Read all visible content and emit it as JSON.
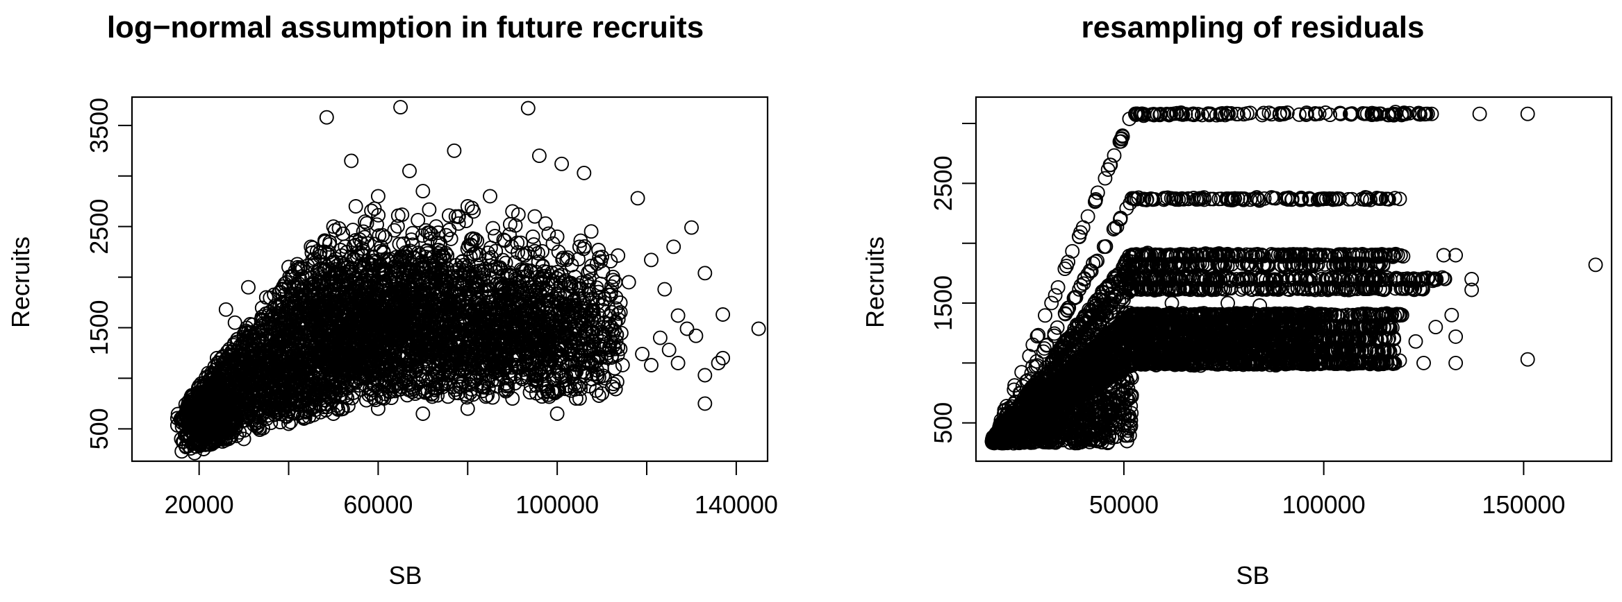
{
  "chart_data": [
    {
      "type": "scatter",
      "title": "log−normal assumption in future recruits",
      "xlabel": "SB",
      "ylabel": "Recruits",
      "xlim": [
        5000,
        147000
      ],
      "ylim": [
        180,
        3780
      ],
      "x_ticks": [
        20000,
        40000,
        60000,
        80000,
        100000,
        120000,
        140000
      ],
      "x_tick_labels": [
        "20000",
        "",
        "60000",
        "",
        "100000",
        "",
        "140000"
      ],
      "y_ticks": [
        500,
        1000,
        1500,
        2000,
        2500,
        3000,
        3500
      ],
      "y_tick_labels": [
        "500",
        "",
        "1500",
        "",
        "2500",
        "",
        "3500"
      ],
      "marker": "open-circle",
      "grid": false,
      "legend": "none",
      "points": [
        [
          48500,
          3580
        ],
        [
          65000,
          3680
        ],
        [
          93500,
          3670
        ],
        [
          54000,
          3150
        ],
        [
          77000,
          3250
        ],
        [
          67000,
          3050
        ],
        [
          96000,
          3200
        ],
        [
          101000,
          3120
        ],
        [
          106000,
          3030
        ],
        [
          118000,
          2780
        ],
        [
          130000,
          2490
        ],
        [
          126000,
          2300
        ],
        [
          121000,
          2170
        ],
        [
          133000,
          2040
        ],
        [
          124000,
          1880
        ],
        [
          127000,
          1620
        ],
        [
          129000,
          1490
        ],
        [
          131000,
          1420
        ],
        [
          123000,
          1400
        ],
        [
          125000,
          1280
        ],
        [
          127000,
          1150
        ],
        [
          133000,
          1030
        ],
        [
          136000,
          1150
        ],
        [
          137000,
          1200
        ],
        [
          133000,
          750
        ],
        [
          137000,
          1630
        ],
        [
          145000,
          1490
        ],
        [
          121000,
          1130
        ],
        [
          119000,
          1240
        ],
        [
          116000,
          1950
        ],
        [
          16000,
          400
        ],
        [
          17000,
          330
        ],
        [
          18000,
          480
        ],
        [
          19000,
          260
        ],
        [
          21000,
          300
        ],
        [
          22000,
          1050
        ],
        [
          24000,
          1200
        ],
        [
          26000,
          1680
        ],
        [
          28000,
          1550
        ],
        [
          31000,
          1900
        ],
        [
          35000,
          1800
        ],
        [
          40000,
          2100
        ],
        [
          45000,
          2300
        ],
        [
          50000,
          2500
        ],
        [
          55000,
          2700
        ],
        [
          60000,
          2800
        ],
        [
          70000,
          2850
        ],
        [
          80000,
          2700
        ],
        [
          85000,
          2800
        ],
        [
          90000,
          2650
        ],
        [
          95000,
          2600
        ],
        [
          100000,
          2400
        ],
        [
          105000,
          2300
        ],
        [
          110000,
          2200
        ],
        [
          113000,
          1950
        ],
        [
          30000,
          400
        ],
        [
          40000,
          550
        ],
        [
          50000,
          650
        ],
        [
          60000,
          700
        ],
        [
          70000,
          650
        ],
        [
          80000,
          700
        ],
        [
          90000,
          800
        ],
        [
          100000,
          650
        ],
        [
          105000,
          800
        ],
        [
          110000,
          850
        ]
      ],
      "density_clouds": [
        {
          "x": 70000,
          "y": 1500,
          "sx": 20000,
          "sy": 430,
          "count": 2200
        },
        {
          "x": 35000,
          "y": 1050,
          "sx": 12000,
          "sy": 380,
          "count": 1200
        },
        {
          "x": 22000,
          "y": 620,
          "sx": 4000,
          "sy": 230,
          "count": 700
        },
        {
          "x": 98000,
          "y": 1420,
          "sx": 9000,
          "sy": 360,
          "count": 500
        },
        {
          "x": 55000,
          "y": 1700,
          "sx": 12000,
          "sy": 450,
          "count": 500
        }
      ]
    },
    {
      "type": "scatter",
      "title": "resampling of residuals",
      "xlabel": "SB",
      "ylabel": "Recruits",
      "xlim": [
        13000,
        172000
      ],
      "ylim": [
        180,
        3220
      ],
      "x_ticks": [
        50000,
        100000,
        150000
      ],
      "x_tick_labels": [
        "50000",
        "100000",
        "150000"
      ],
      "y_ticks": [
        500,
        1000,
        1500,
        2000,
        2500,
        3000
      ],
      "y_tick_labels": [
        "500",
        "",
        "1500",
        "",
        "2500",
        ""
      ],
      "marker": "open-circle",
      "grid": false,
      "legend": "none",
      "bands": [
        {
          "level": 3080,
          "breakpoint": 52000,
          "x_max": 126000,
          "count": 160
        },
        {
          "level": 2370,
          "breakpoint": 52000,
          "x_max": 118000,
          "count": 180
        },
        {
          "level": 1900,
          "breakpoint": 52000,
          "x_max": 120000,
          "count": 320
        },
        {
          "level": 1820,
          "breakpoint": 52000,
          "x_max": 115000,
          "count": 250
        },
        {
          "level": 1700,
          "breakpoint": 52000,
          "x_max": 132000,
          "count": 320
        },
        {
          "level": 1620,
          "breakpoint": 52000,
          "x_max": 125000,
          "count": 250
        },
        {
          "level": 1400,
          "breakpoint": 52000,
          "x_max": 120000,
          "count": 500
        },
        {
          "level": 1300,
          "breakpoint": 52000,
          "x_max": 118000,
          "count": 500
        },
        {
          "level": 1200,
          "breakpoint": 52000,
          "x_max": 118000,
          "count": 500
        },
        {
          "level": 1100,
          "breakpoint": 52000,
          "x_max": 118000,
          "count": 500
        },
        {
          "level": 1000,
          "breakpoint": 52000,
          "x_max": 118000,
          "count": 500
        }
      ],
      "points": [
        [
          127000,
          3080
        ],
        [
          139000,
          3080
        ],
        [
          151000,
          3080
        ],
        [
          126000,
          3080
        ],
        [
          116000,
          2370
        ],
        [
          119000,
          2370
        ],
        [
          133000,
          1900
        ],
        [
          130000,
          1900
        ],
        [
          168000,
          1820
        ],
        [
          137000,
          1700
        ],
        [
          137000,
          1610
        ],
        [
          132000,
          1400
        ],
        [
          133000,
          1220
        ],
        [
          133000,
          1000
        ],
        [
          151000,
          1030
        ],
        [
          125000,
          1000
        ],
        [
          119000,
          1020
        ],
        [
          123000,
          1180
        ],
        [
          128000,
          1300
        ],
        [
          62000,
          1500
        ],
        [
          76000,
          1500
        ],
        [
          84000,
          1480
        ]
      ]
    }
  ]
}
